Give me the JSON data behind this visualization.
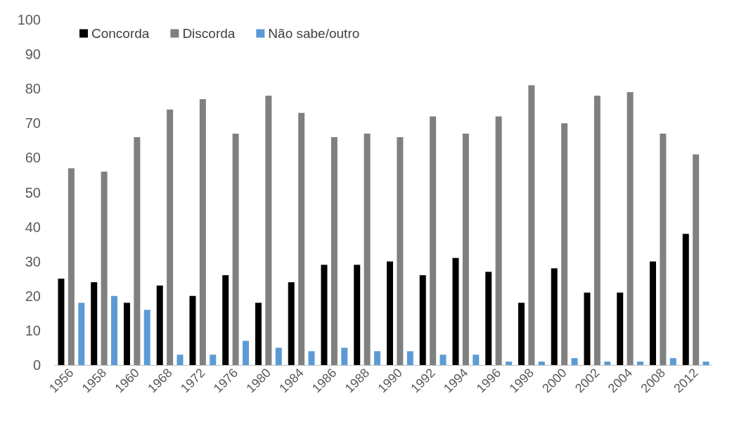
{
  "chart_data": {
    "type": "bar",
    "categories": [
      "1956",
      "1958",
      "1960",
      "1968",
      "1972",
      "1976",
      "1980",
      "1984",
      "1986",
      "1988",
      "1990",
      "1992",
      "1994",
      "1996",
      "1998",
      "2000",
      "2002",
      "2004",
      "2008",
      "2012"
    ],
    "series": [
      {
        "name": "Concorda",
        "color": "#000000",
        "values": [
          25,
          24,
          18,
          23,
          20,
          26,
          18,
          24,
          29,
          29,
          30,
          26,
          31,
          27,
          18,
          28,
          21,
          21,
          30,
          38
        ]
      },
      {
        "name": "Discorda",
        "color": "#808080",
        "values": [
          57,
          56,
          66,
          74,
          77,
          67,
          78,
          73,
          66,
          67,
          66,
          72,
          67,
          72,
          81,
          70,
          78,
          79,
          67,
          61
        ]
      },
      {
        "name": "Não sabe/outro",
        "color": "#5b9bd5",
        "values": [
          18,
          20,
          16,
          3,
          3,
          7,
          5,
          4,
          5,
          4,
          4,
          3,
          3,
          1,
          1,
          2,
          1,
          1,
          2,
          1
        ]
      }
    ],
    "ylim": [
      0,
      100
    ],
    "yticks": [
      0,
      10,
      20,
      30,
      40,
      50,
      60,
      70,
      80,
      90,
      100
    ],
    "grid": false,
    "legend": "top left"
  }
}
